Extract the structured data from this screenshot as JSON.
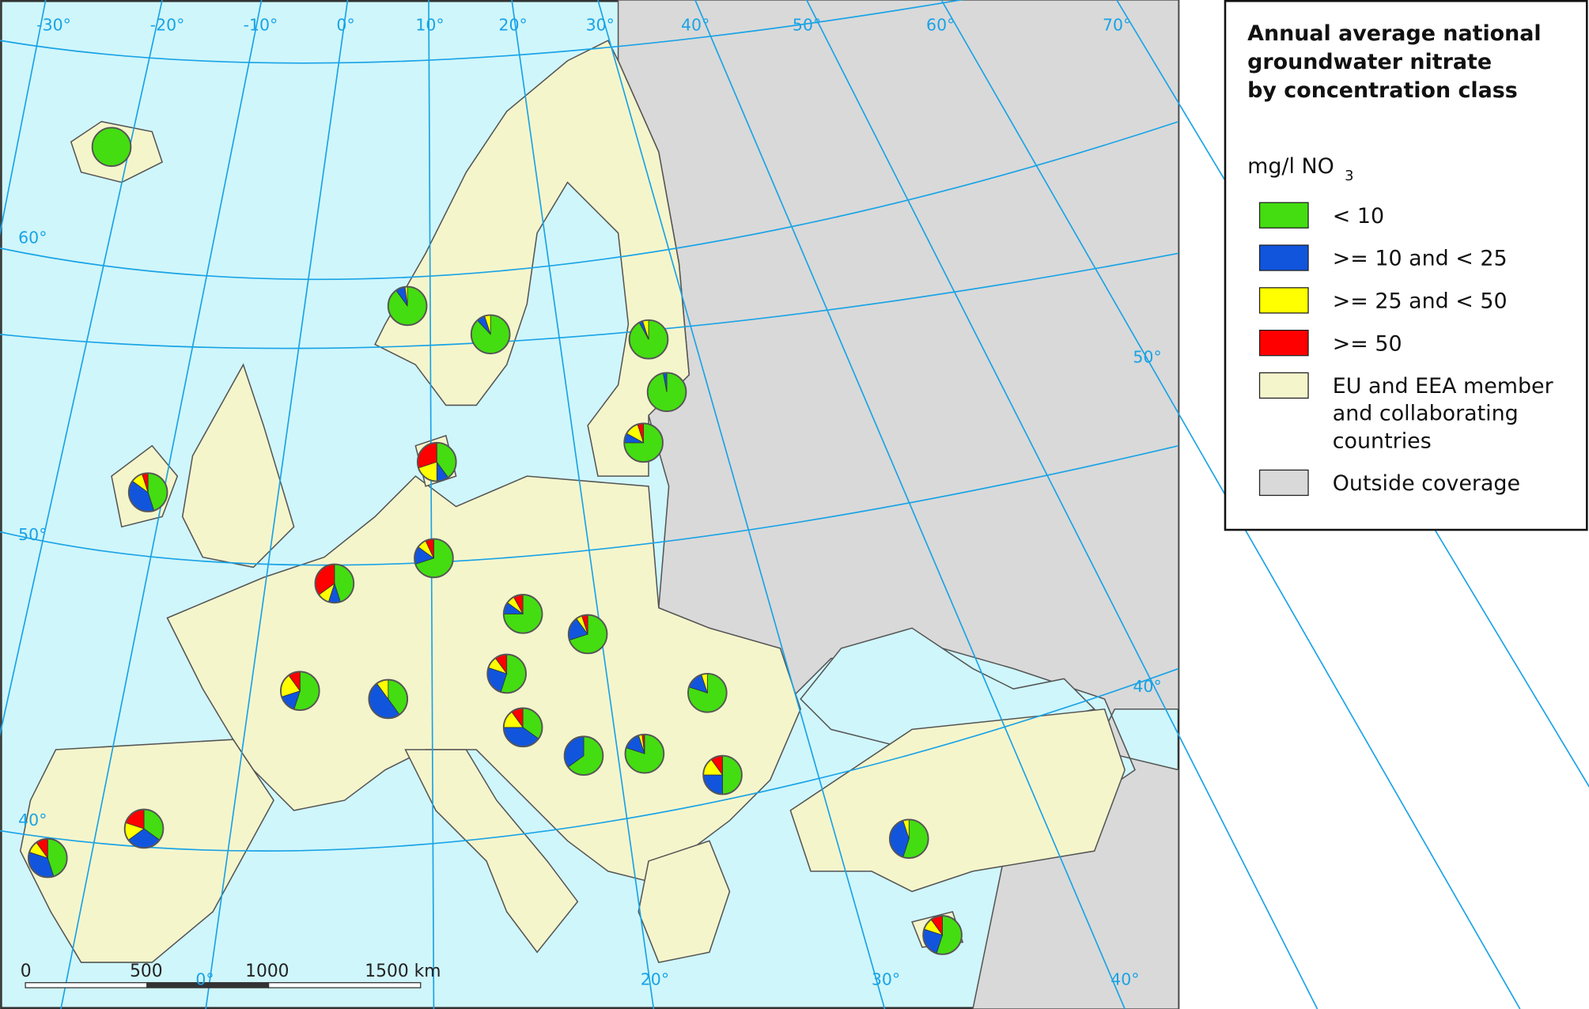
{
  "map": {
    "graticule_labels": [
      "-30°",
      "-20°",
      "-10°",
      "0°",
      "10°",
      "20°",
      "30°",
      "40°",
      "50°",
      "60°",
      "70°",
      "60°",
      "50°",
      "40°",
      "50°",
      "40°",
      "0°",
      "20°",
      "30°",
      "40°"
    ],
    "scale_labels": [
      "0",
      "500",
      "1000",
      "1500 km"
    ],
    "pies": [
      {
        "values": [
          100,
          0,
          0,
          0
        ]
      },
      {
        "values": [
          90,
          8,
          2,
          0
        ]
      },
      {
        "values": [
          88,
          7,
          5,
          0
        ]
      },
      {
        "values": [
          92,
          3,
          5,
          0
        ]
      },
      {
        "values": [
          97,
          3,
          0,
          0
        ]
      },
      {
        "values": [
          75,
          8,
          12,
          5
        ]
      },
      {
        "values": [
          45,
          40,
          10,
          5
        ]
      },
      {
        "values": [
          40,
          10,
          20,
          30
        ]
      },
      {
        "values": [
          70,
          15,
          8,
          7
        ]
      },
      {
        "values": [
          45,
          10,
          10,
          35
        ]
      },
      {
        "values": [
          75,
          10,
          7,
          8
        ]
      },
      {
        "values": [
          70,
          20,
          5,
          5
        ]
      },
      {
        "values": [
          55,
          15,
          20,
          10
        ]
      },
      {
        "values": [
          40,
          50,
          10,
          0
        ]
      },
      {
        "values": [
          55,
          25,
          10,
          10
        ]
      },
      {
        "values": [
          35,
          40,
          15,
          10
        ]
      },
      {
        "values": [
          65,
          35,
          0,
          0
        ]
      },
      {
        "values": [
          80,
          15,
          3,
          2
        ]
      },
      {
        "values": [
          80,
          15,
          5,
          0
        ]
      },
      {
        "values": [
          50,
          25,
          15,
          10
        ]
      },
      {
        "values": [
          35,
          30,
          15,
          20
        ]
      },
      {
        "values": [
          45,
          35,
          10,
          10
        ]
      },
      {
        "values": [
          55,
          40,
          5,
          0
        ]
      },
      {
        "values": [
          55,
          25,
          10,
          10
        ]
      }
    ]
  },
  "legend": {
    "title": [
      "Annual average national",
      "groundwater nitrate",
      "by concentration class"
    ],
    "unit": "mg/l NO",
    "unit_sub": "3",
    "classes": [
      {
        "label": [
          "< 10"
        ],
        "color": "#44dd11"
      },
      {
        "label": [
          ">= 10 and < 25"
        ],
        "color": "#1155dd"
      },
      {
        "label": [
          ">= 25 and < 50"
        ],
        "color": "#ffff00"
      },
      {
        "label": [
          ">= 50"
        ],
        "color": "#ff0000"
      }
    ],
    "areas": [
      {
        "label": [
          "EU and EEA member",
          "and collaborating",
          "countries"
        ],
        "color": "#f5f5cc"
      },
      {
        "label": [
          "Outside coverage"
        ],
        "color": "#d9d9d9"
      }
    ]
  }
}
